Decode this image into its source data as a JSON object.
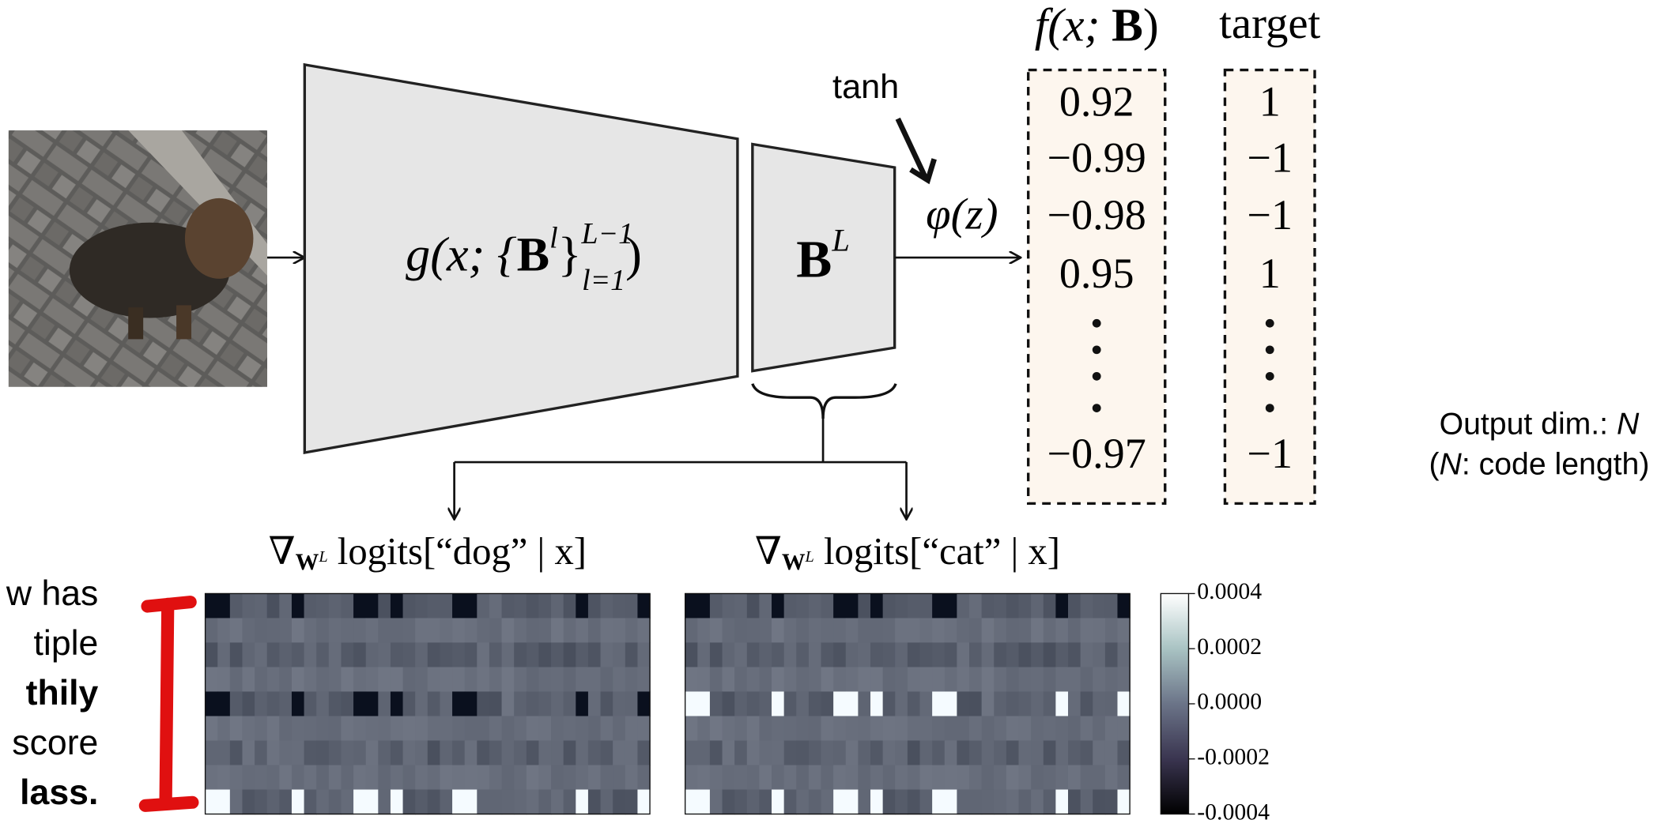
{
  "diagram": {
    "encoder_label": {
      "g": "g(x; {",
      "B": "B",
      "sup": "l",
      "close": "}",
      "upper": "L−1",
      "lower": "l=1",
      "end": ")"
    },
    "last_layer": {
      "B": "B",
      "sup": "L"
    },
    "activation": "tanh",
    "phi": "φ(z)",
    "output_header": {
      "f": "f(x; ",
      "B": "B",
      "end": ")"
    },
    "target_header": "target",
    "outputs": [
      "0.92",
      "−0.99",
      "−0.98",
      "0.95",
      "−0.97"
    ],
    "targets": [
      "1",
      "−1",
      "−1",
      "1",
      "−1"
    ],
    "side_note": {
      "line1_a": "Output dim.: ",
      "line1_b": "N",
      "line2_a": "(",
      "line2_b": "N",
      "line2_c": ": code length)"
    },
    "heatmaps": [
      {
        "nabla": "∇",
        "w": "W",
        "sup": "L",
        "rest": " logits[“dog” | x]"
      },
      {
        "nabla": "∇",
        "w": "W",
        "sup": "L",
        "rest": " logits[“cat” | x]"
      }
    ],
    "colorbar_ticks": [
      "0.0004",
      "0.0002",
      "0.0000",
      "-0.0002",
      "-0.0004"
    ],
    "left_text": [
      "w has",
      "tiple",
      "thily",
      "score",
      "lass."
    ]
  }
}
